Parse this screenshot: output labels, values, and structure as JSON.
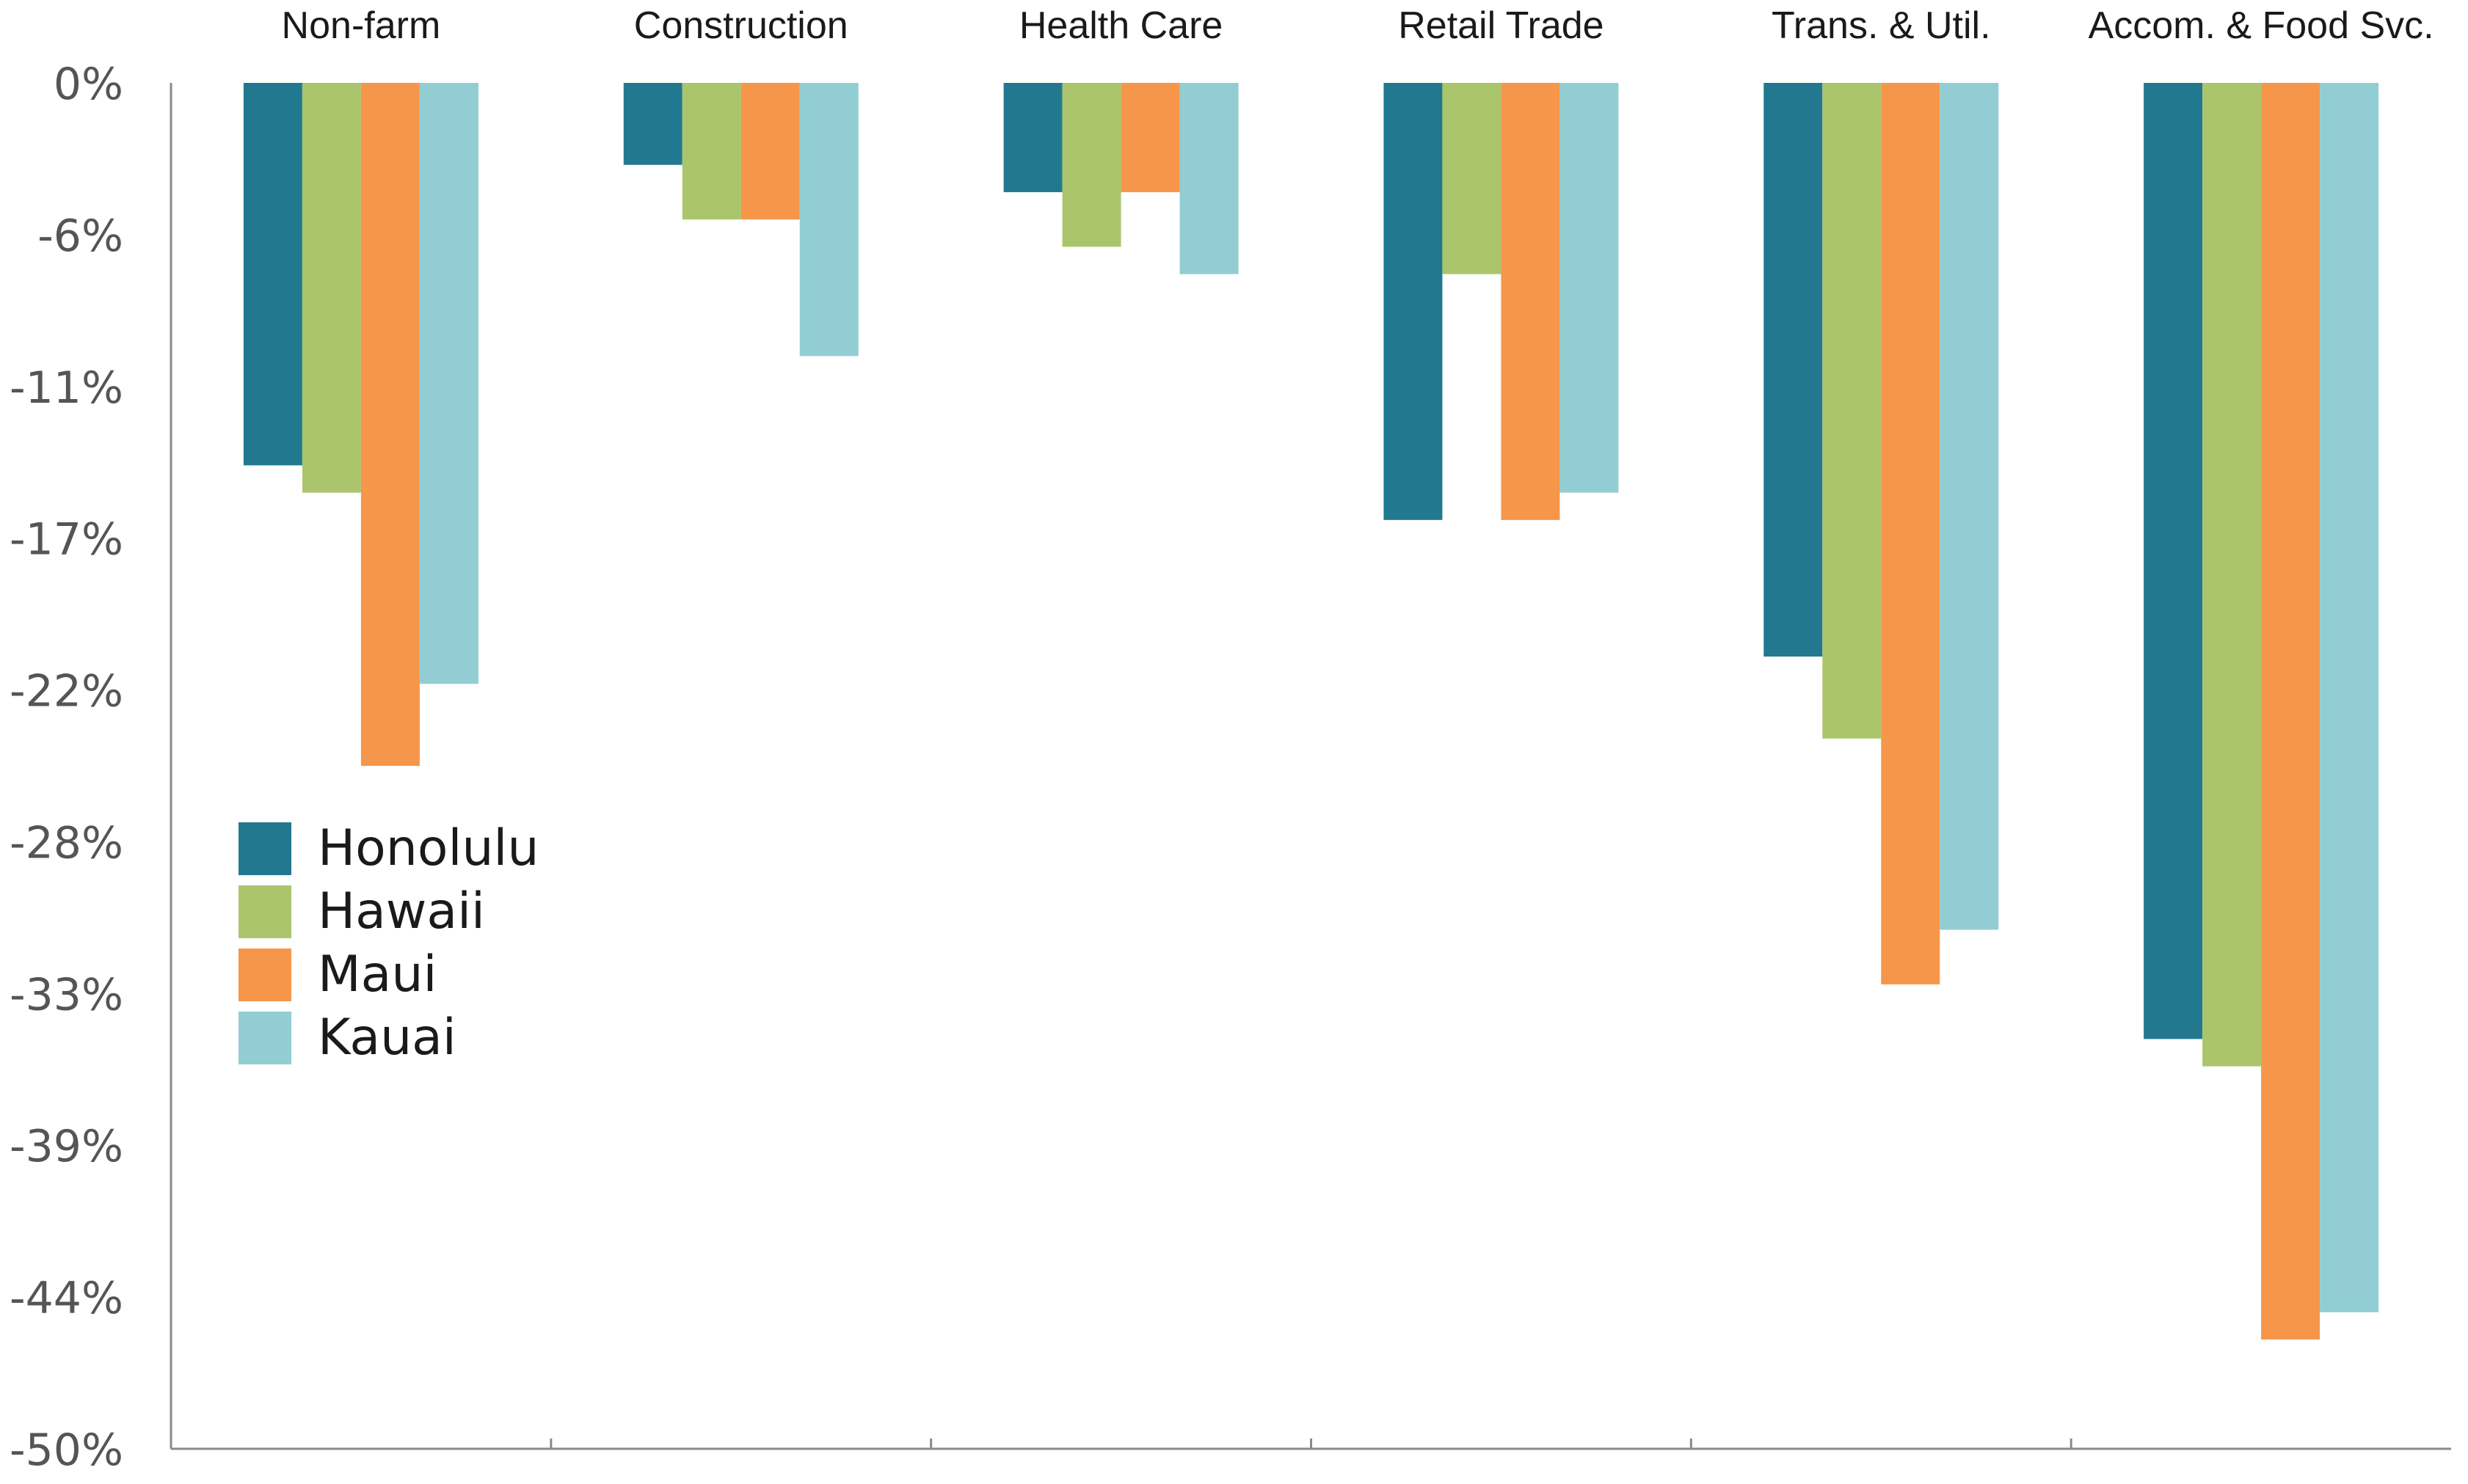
{
  "chart_data": {
    "type": "bar",
    "title": "",
    "xlabel": "",
    "ylabel": "",
    "ylim": [
      -50,
      0
    ],
    "yticks": [
      "0%",
      "-6%",
      "-11%",
      "-17%",
      "-22%",
      "-28%",
      "-33%",
      "-39%",
      "-44%",
      "-50%"
    ],
    "categories": [
      "Non-farm",
      "Construction",
      "Health Care",
      "Retail Trade",
      "Trans. & Util.",
      "Accom. & Food Svc."
    ],
    "category_position": "top",
    "legend_position": "left-middle",
    "series": [
      {
        "name": "Honolulu",
        "color": "#22798f",
        "values": [
          -14.0,
          -3.0,
          -4.0,
          -16.0,
          -21.0,
          -35.0
        ]
      },
      {
        "name": "Hawaii",
        "color": "#abc56d",
        "values": [
          -15.0,
          -5.0,
          -6.0,
          -7.0,
          -24.0,
          -36.0
        ]
      },
      {
        "name": "Maui",
        "color": "#f6964a",
        "values": [
          -25.0,
          -5.0,
          -4.0,
          -16.0,
          -33.0,
          -46.0
        ]
      },
      {
        "name": "Kauai",
        "color": "#92cdd4",
        "values": [
          -22.0,
          -10.0,
          -7.0,
          -15.0,
          -31.0,
          -45.0
        ]
      }
    ],
    "grid": false
  }
}
